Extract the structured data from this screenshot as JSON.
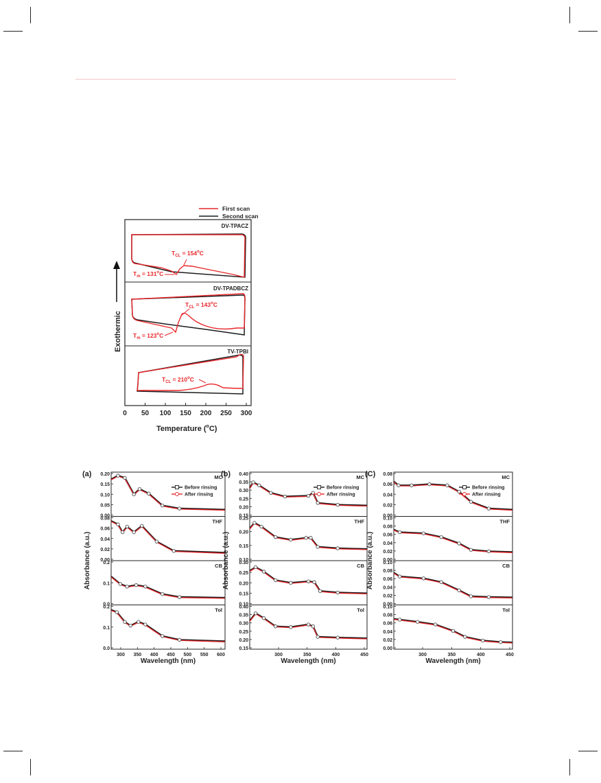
{
  "dsc": {
    "legend": {
      "first": "First scan",
      "second": "Second scan"
    },
    "y_label": "Exothermic",
    "x_label": "Temperature (",
    "x_label_sup": "o",
    "x_label_end": "C)",
    "x_ticks": [
      "0",
      "50",
      "100",
      "150",
      "200",
      "250",
      "300"
    ],
    "panels": [
      {
        "name": "DV-TPACZ",
        "ann": [
          {
            "main": "T",
            "sub": "CL",
            "tail": " = 154",
            "sup": "o",
            "end": "C"
          },
          {
            "main": "T",
            "sub": "m",
            "tail": " = 131",
            "sup": "o",
            "end": "C"
          }
        ]
      },
      {
        "name": "DV-TPADBCZ",
        "ann": [
          {
            "main": "T",
            "sub": "CL",
            "tail": " = 143",
            "sup": "o",
            "end": "C"
          },
          {
            "main": "T",
            "sub": "m",
            "tail": " = 123",
            "sup": "o",
            "end": "C"
          }
        ]
      },
      {
        "name": "TV-TPBI",
        "ann": [
          {
            "main": "T",
            "sub": "CL",
            "tail": " = 210",
            "sup": "o",
            "end": "C"
          }
        ]
      }
    ]
  },
  "uv": {
    "y_label": "Absorbance (a.u.)",
    "x_label": "Wavelength (nm)",
    "legend": {
      "before": "Before rinsing",
      "after": "After rinsing"
    },
    "figs": [
      {
        "letter": "(a)",
        "xticks": [
          "300",
          "350",
          "400",
          "450",
          "500",
          "550",
          "600"
        ],
        "panels": [
          {
            "name": "MC",
            "ticks": [
              "0.20",
              "0.15",
              "0.10",
              "0.05",
              "0.00"
            ]
          },
          {
            "name": "THF",
            "ticks": [
              "0.08",
              "0.06",
              "0.04",
              "0.02",
              "0.00"
            ]
          },
          {
            "name": "CB",
            "ticks": [
              "0.2",
              "0.1",
              "0.0"
            ]
          },
          {
            "name": "Tol",
            "ticks": [
              "0.2",
              "0.1",
              "0.0"
            ]
          }
        ]
      },
      {
        "letter": "(b)",
        "xticks": [
          "300",
          "350",
          "400",
          "450"
        ],
        "panels": [
          {
            "name": "MC",
            "ticks": [
              "0.40",
              "0.35",
              "0.30",
              "0.25",
              "0.20",
              "0.15"
            ]
          },
          {
            "name": "THF",
            "ticks": [
              "0.25",
              "0.20",
              "0.15",
              "0.10"
            ]
          },
          {
            "name": "CB",
            "ticks": [
              "0.30",
              "0.25",
              "0.20",
              "0.15",
              "0.10"
            ]
          },
          {
            "name": "Tol",
            "ticks": [
              "0.40",
              "0.35",
              "0.30",
              "0.25",
              "0.20",
              "0.15"
            ]
          }
        ]
      },
      {
        "letter": "(C)",
        "xticks": [
          "300",
          "350",
          "400",
          "450"
        ],
        "panels": [
          {
            "name": "MC",
            "ticks": [
              "0.08",
              "0.06",
              "0.04",
              "0.02",
              "0.00"
            ]
          },
          {
            "name": "THF",
            "ticks": [
              "0.10",
              "0.08",
              "0.06",
              "0.04",
              "0.02",
              "0.00"
            ]
          },
          {
            "name": "CB",
            "ticks": [
              "0.10",
              "0.08",
              "0.06",
              "0.04",
              "0.02",
              "0.00"
            ]
          },
          {
            "name": "Tol",
            "ticks": [
              "0.10",
              "0.08",
              "0.06",
              "0.04",
              "0.02",
              "0.00"
            ]
          }
        ]
      }
    ]
  },
  "chart_data": [
    {
      "type": "line",
      "xlabel": "Temperature (oC)",
      "ylabel": "Exothermic",
      "xlim": [
        0,
        310
      ],
      "series": [
        {
          "name": "First scan",
          "color": "#e8262a"
        },
        {
          "name": "Second scan",
          "color": "#1a1a1a"
        }
      ],
      "annotations": [
        "DV-TPACZ: TCL = 154oC, Tm = 131oC",
        "DV-TPADBCZ: TCL = 143oC, Tm = 123oC",
        "TV-TPBI: TCL = 210oC"
      ]
    },
    {
      "type": "line",
      "xlabel": "Wavelength (nm)",
      "ylabel": "Absorbance (a.u.)",
      "series": [
        {
          "name": "Before rinsing",
          "color": "#1a1a1a"
        },
        {
          "name": "After rinsing",
          "color": "#e8262a"
        }
      ],
      "panels": [
        "MC",
        "THF",
        "CB",
        "Tol"
      ]
    }
  ]
}
